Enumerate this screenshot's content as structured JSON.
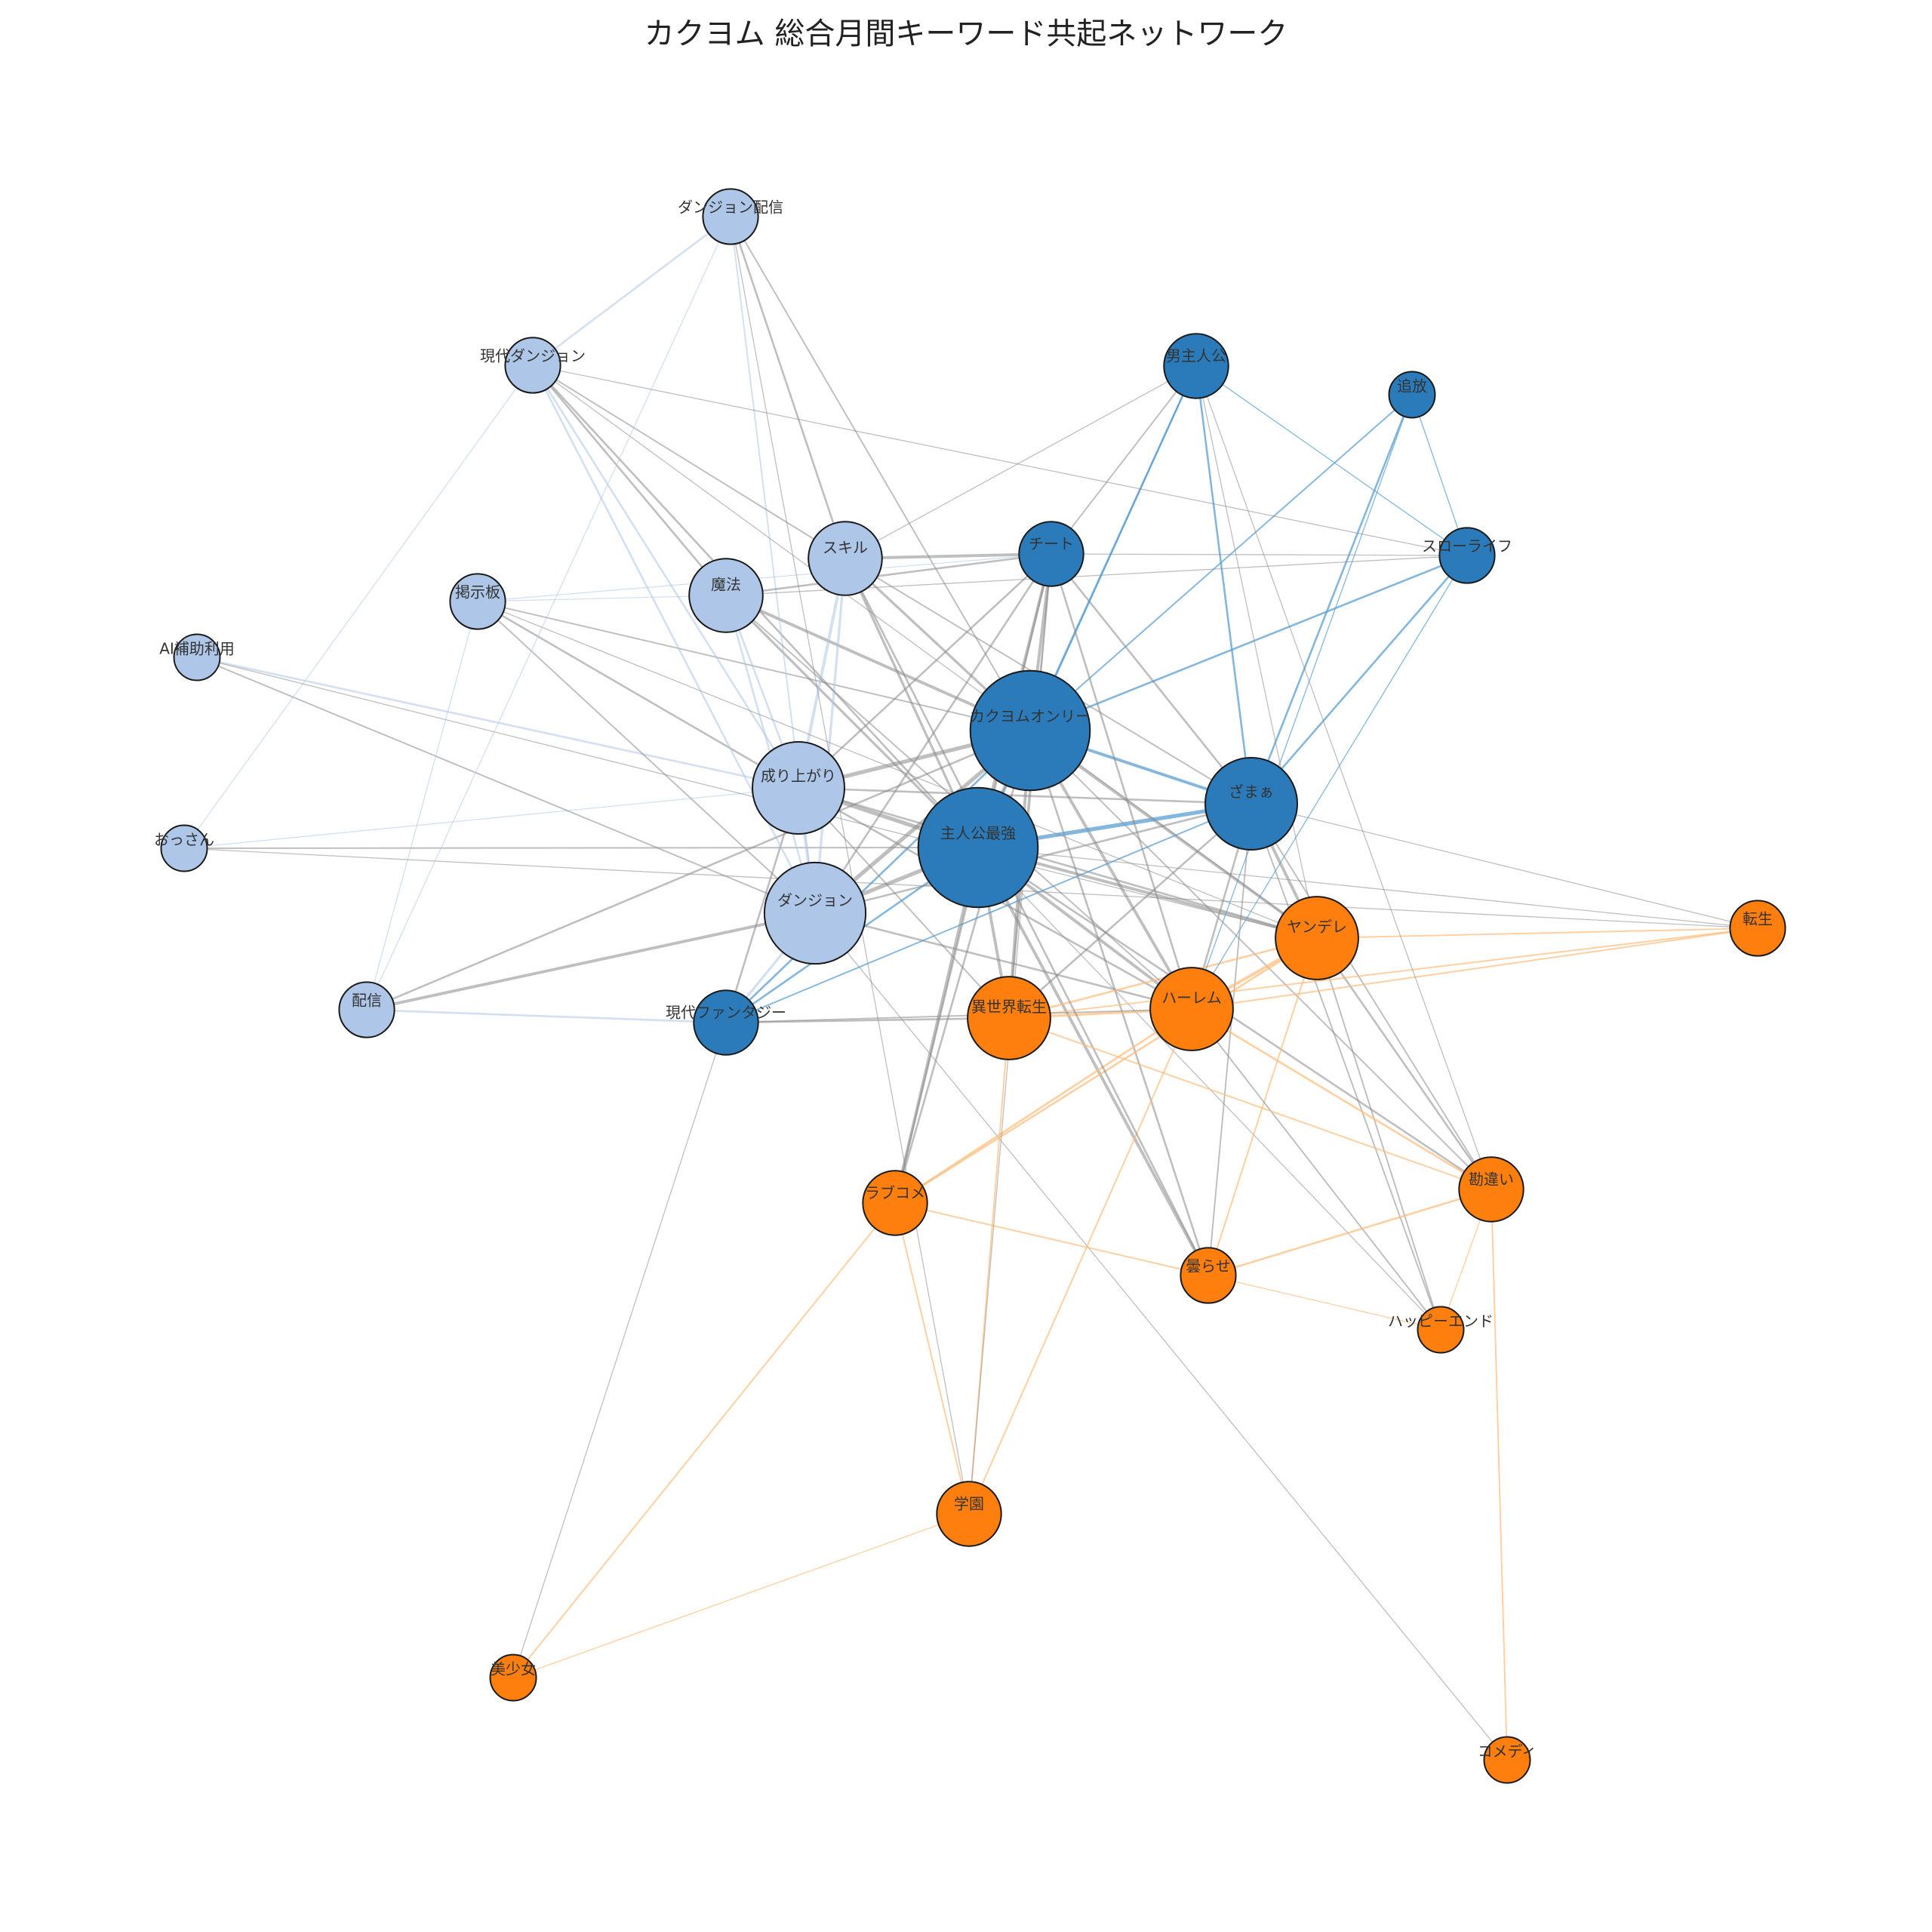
{
  "title": "カクヨム 総合月間キーワード共起ネットワーク",
  "colors": {
    "light_blue": "#aec7e8",
    "dark_blue": "#2b7bba",
    "orange": "#ff7f0e",
    "node_border": "#1a1a1a",
    "edge_gray": "#8a8a8a",
    "edge_light_blue": "#aec7e8",
    "edge_blue": "#5b9fd1",
    "edge_orange": "#ffbb78"
  },
  "nodes": [
    {
      "id": "ダンジョン配信",
      "group": "light_blue",
      "size": 3
    },
    {
      "id": "現代ダンジョン",
      "group": "light_blue",
      "size": 3
    },
    {
      "id": "スキル",
      "group": "light_blue",
      "size": 4
    },
    {
      "id": "魔法",
      "group": "light_blue",
      "size": 4
    },
    {
      "id": "掲示板",
      "group": "light_blue",
      "size": 3
    },
    {
      "id": "AI補助利用",
      "group": "light_blue",
      "size": 2.5
    },
    {
      "id": "成り上がり",
      "group": "light_blue",
      "size": 5
    },
    {
      "id": "おっさん",
      "group": "light_blue",
      "size": 2.5
    },
    {
      "id": "ダンジョン",
      "group": "light_blue",
      "size": 5.5
    },
    {
      "id": "配信",
      "group": "light_blue",
      "size": 3
    },
    {
      "id": "男主人公",
      "group": "dark_blue",
      "size": 3.5
    },
    {
      "id": "追放",
      "group": "dark_blue",
      "size": 2.5
    },
    {
      "id": "チート",
      "group": "dark_blue",
      "size": 3.5
    },
    {
      "id": "スローライフ",
      "group": "dark_blue",
      "size": 3
    },
    {
      "id": "カクヨムオンリー",
      "group": "dark_blue",
      "size": 6.5
    },
    {
      "id": "ざまぁ",
      "group": "dark_blue",
      "size": 5
    },
    {
      "id": "主人公最強",
      "group": "dark_blue",
      "size": 6.5
    },
    {
      "id": "現代ファンタジー",
      "group": "dark_blue",
      "size": 3.5
    },
    {
      "id": "ヤンデレ",
      "group": "orange",
      "size": 4.5
    },
    {
      "id": "転生",
      "group": "orange",
      "size": 3
    },
    {
      "id": "異世界転生",
      "group": "orange",
      "size": 4.5
    },
    {
      "id": "ハーレム",
      "group": "orange",
      "size": 4.5
    },
    {
      "id": "ラブコメ",
      "group": "orange",
      "size": 3.5
    },
    {
      "id": "勘違い",
      "group": "orange",
      "size": 3.5
    },
    {
      "id": "曇らせ",
      "group": "orange",
      "size": 3
    },
    {
      "id": "ハッピーエンド",
      "group": "orange",
      "size": 2.5
    },
    {
      "id": "学園",
      "group": "orange",
      "size": 3.5
    },
    {
      "id": "美少女",
      "group": "orange",
      "size": 2.5
    },
    {
      "id": "コメディ",
      "group": "orange",
      "size": 2.5
    }
  ],
  "edges": [
    [
      "カクヨムオンリー",
      "主人公最強",
      4,
      "gray"
    ],
    [
      "カクヨムオンリー",
      "成り上がり",
      4,
      "gray"
    ],
    [
      "カクヨムオンリー",
      "ダンジョン",
      4,
      "gray"
    ],
    [
      "カクヨムオンリー",
      "ざまぁ",
      3,
      "blue"
    ],
    [
      "カクヨムオンリー",
      "チート",
      3,
      "gray"
    ],
    [
      "カクヨムオンリー",
      "男主人公",
      2,
      "blue"
    ],
    [
      "カクヨムオンリー",
      "スローライフ",
      2,
      "blue"
    ],
    [
      "カクヨムオンリー",
      "追放",
      1.5,
      "blue"
    ],
    [
      "カクヨムオンリー",
      "魔法",
      3,
      "gray"
    ],
    [
      "カクヨムオンリー",
      "スキル",
      2.5,
      "gray"
    ],
    [
      "カクヨムオンリー",
      "ヤンデレ",
      3,
      "gray"
    ],
    [
      "カクヨムオンリー",
      "ハーレム",
      3,
      "gray"
    ],
    [
      "カクヨムオンリー",
      "異世界転生",
      3,
      "gray"
    ],
    [
      "カクヨムオンリー",
      "ラブコメ",
      2,
      "gray"
    ],
    [
      "カクヨムオンリー",
      "曇らせ",
      2,
      "gray"
    ],
    [
      "カクヨムオンリー",
      "勘違い",
      1.5,
      "gray"
    ],
    [
      "カクヨムオンリー",
      "現代ファンタジー",
      2,
      "blue"
    ],
    [
      "カクヨムオンリー",
      "配信",
      2,
      "gray"
    ],
    [
      "カクヨムオンリー",
      "ダンジョン配信",
      1.5,
      "gray"
    ],
    [
      "カクヨムオンリー",
      "掲示板",
      1.5,
      "gray"
    ],
    [
      "主人公最強",
      "成り上がり",
      4,
      "gray"
    ],
    [
      "主人公最強",
      "ダンジョン",
      4,
      "gray"
    ],
    [
      "主人公最強",
      "ざまぁ",
      4,
      "blue"
    ],
    [
      "主人公最強",
      "チート",
      3,
      "gray"
    ],
    [
      "主人公最強",
      "魔法",
      2.5,
      "gray"
    ],
    [
      "主人公最強",
      "スキル",
      2.5,
      "gray"
    ],
    [
      "主人公最強",
      "ヤンデレ",
      3,
      "gray"
    ],
    [
      "主人公最強",
      "ハーレム",
      3,
      "gray"
    ],
    [
      "主人公最強",
      "異世界転生",
      3,
      "gray"
    ],
    [
      "主人公最強",
      "ラブコメ",
      3,
      "gray"
    ],
    [
      "主人公最強",
      "曇らせ",
      3,
      "gray"
    ],
    [
      "主人公最強",
      "勘違い",
      2,
      "gray"
    ],
    [
      "主人公最強",
      "おっさん",
      1.5,
      "gray"
    ],
    [
      "主人公最強",
      "現代ダンジョン",
      2,
      "gray"
    ],
    [
      "主人公最強",
      "男主人公",
      1.5,
      "blue"
    ],
    [
      "主人公最強",
      "現代ファンタジー",
      2,
      "blue"
    ],
    [
      "主人公最強",
      "転生",
      1,
      "gray"
    ],
    [
      "主人公最強",
      "ハッピーエンド",
      1,
      "gray"
    ],
    [
      "成り上がり",
      "ダンジョン",
      3,
      "light"
    ],
    [
      "成り上がり",
      "スキル",
      3,
      "light"
    ],
    [
      "成り上がり",
      "魔法",
      2,
      "light"
    ],
    [
      "成り上がり",
      "チート",
      2,
      "gray"
    ],
    [
      "成り上がり",
      "ざまぁ",
      2,
      "gray"
    ],
    [
      "成り上がり",
      "掲示板",
      2,
      "gray"
    ],
    [
      "成り上がり",
      "AI補助利用",
      2,
      "light"
    ],
    [
      "成り上がり",
      "おっさん",
      1,
      "light"
    ],
    [
      "成り上がり",
      "現代ダンジョン",
      2,
      "light"
    ],
    [
      "成り上がり",
      "ハーレム",
      2,
      "gray"
    ],
    [
      "成り上がり",
      "ヤンデレ",
      2,
      "gray"
    ],
    [
      "成り上がり",
      "異世界転生",
      1.5,
      "gray"
    ],
    [
      "成り上がり",
      "現代ファンタジー",
      2,
      "gray"
    ],
    [
      "ダンジョン",
      "配信",
      3,
      "gray"
    ],
    [
      "ダンジョン",
      "スキル",
      2.5,
      "light"
    ],
    [
      "ダンジョン",
      "魔法",
      2,
      "light"
    ],
    [
      "ダンジョン",
      "現代ダンジョン",
      2,
      "light"
    ],
    [
      "ダンジョン",
      "ダンジョン配信",
      1.5,
      "light"
    ],
    [
      "ダンジョン",
      "掲示板",
      1.5,
      "gray"
    ],
    [
      "ダンジョン",
      "AI補助利用",
      1.5,
      "gray"
    ],
    [
      "ダンジョン",
      "現代ファンタジー",
      2.5,
      "light"
    ],
    [
      "ダンジョン",
      "ざまぁ",
      2,
      "gray"
    ],
    [
      "ダンジョン",
      "チート",
      2,
      "gray"
    ],
    [
      "ダンジョン",
      "ハーレム",
      2,
      "gray"
    ],
    [
      "ダンジョン",
      "コメディ",
      1,
      "gray"
    ],
    [
      "ざまぁ",
      "追放",
      2,
      "blue"
    ],
    [
      "ざまぁ",
      "スローライフ",
      2,
      "blue"
    ],
    [
      "ざまぁ",
      "男主人公",
      2,
      "blue"
    ],
    [
      "ざまぁ",
      "チート",
      2,
      "gray"
    ],
    [
      "ざまぁ",
      "ヤンデレ",
      3,
      "gray"
    ],
    [
      "ざまぁ",
      "ハーレム",
      2,
      "gray"
    ],
    [
      "ざまぁ",
      "異世界転生",
      2,
      "gray"
    ],
    [
      "ざまぁ",
      "曇らせ",
      1.5,
      "gray"
    ],
    [
      "ざまぁ",
      "勘違い",
      1.5,
      "gray"
    ],
    [
      "ざまぁ",
      "転生",
      1,
      "gray"
    ],
    [
      "ざまぁ",
      "ハッピーエンド",
      1.5,
      "gray"
    ],
    [
      "ざまぁ",
      "現代ファンタジー",
      1.5,
      "blue"
    ],
    [
      "ざまぁ",
      "スキル",
      1.5,
      "gray"
    ],
    [
      "ヤンデレ",
      "ハーレム",
      3,
      "orange"
    ],
    [
      "ヤンデレ",
      "異世界転生",
      2,
      "orange"
    ],
    [
      "ヤンデレ",
      "ラブコメ",
      2,
      "orange"
    ],
    [
      "ヤンデレ",
      "勘違い",
      2,
      "gray"
    ],
    [
      "ヤンデレ",
      "曇らせ",
      1.5,
      "orange"
    ],
    [
      "ヤンデレ",
      "ハッピーエンド",
      1.5,
      "gray"
    ],
    [
      "ヤンデレ",
      "転生",
      1.5,
      "orange"
    ],
    [
      "ヤンデレ",
      "男主人公",
      1,
      "gray"
    ],
    [
      "ハーレム",
      "異世界転生",
      2.5,
      "orange"
    ],
    [
      "ハーレム",
      "ラブコメ",
      2,
      "orange"
    ],
    [
      "ハーレム",
      "勘違い",
      2,
      "orange"
    ],
    [
      "ハーレム",
      "学園",
      1.5,
      "orange"
    ],
    [
      "ハーレム",
      "ハッピーエンド",
      1.5,
      "gray"
    ],
    [
      "ハーレム",
      "転生",
      1.5,
      "orange"
    ],
    [
      "ハーレム",
      "チート",
      2,
      "gray"
    ],
    [
      "異世界転生",
      "チート",
      2,
      "gray"
    ],
    [
      "異世界転生",
      "転生",
      1.5,
      "orange"
    ],
    [
      "異世界転生",
      "学園",
      1.5,
      "orange"
    ],
    [
      "異世界転生",
      "現代ファンタジー",
      2,
      "gray"
    ],
    [
      "ラブコメ",
      "曇らせ",
      1.5,
      "orange"
    ],
    [
      "ラブコメ",
      "学園",
      1.5,
      "orange"
    ],
    [
      "ラブコメ",
      "美少女",
      1.5,
      "orange"
    ],
    [
      "ラブコメ",
      "チート",
      2,
      "gray"
    ],
    [
      "曇らせ",
      "勘違い",
      2,
      "orange"
    ],
    [
      "曇らせ",
      "ハッピーエンド",
      1,
      "orange"
    ],
    [
      "曇らせ",
      "スキル",
      2,
      "gray"
    ],
    [
      "勘違い",
      "ハッピーエンド",
      1,
      "orange"
    ],
    [
      "勘違い",
      "コメディ",
      1.5,
      "orange"
    ],
    [
      "勘違い",
      "異世界転生",
      1.5,
      "orange"
    ],
    [
      "学園",
      "美少女",
      1,
      "orange"
    ],
    [
      "学園",
      "ダンジョン配信",
      1,
      "gray"
    ],
    [
      "美少女",
      "現代ファンタジー",
      1,
      "gray"
    ],
    [
      "チート",
      "スキル",
      3,
      "gray"
    ],
    [
      "チート",
      "男主人公",
      1.5,
      "gray"
    ],
    [
      "チート",
      "魔法",
      2,
      "gray"
    ],
    [
      "チート",
      "掲示板",
      1,
      "light"
    ],
    [
      "スキル",
      "ダンジョン配信",
      2,
      "gray"
    ],
    [
      "スキル",
      "男主人公",
      1,
      "gray"
    ],
    [
      "スキル",
      "現代ダンジョン",
      1.5,
      "gray"
    ],
    [
      "魔法",
      "現代ダンジョン",
      2,
      "gray"
    ],
    [
      "魔法",
      "掲示板",
      1,
      "light"
    ],
    [
      "魔法",
      "スローライフ",
      1,
      "gray"
    ],
    [
      "魔法",
      "ハーレム",
      1.5,
      "gray"
    ],
    [
      "現代ダンジョン",
      "ダンジョン配信",
      2,
      "light"
    ],
    [
      "現代ダンジョン",
      "おっさん",
      1,
      "light"
    ],
    [
      "現代ダンジョン",
      "スローライフ",
      1,
      "gray"
    ],
    [
      "現代ダンジョン",
      "ヤンデレ",
      1,
      "gray"
    ],
    [
      "掲示板",
      "配信",
      1,
      "light"
    ],
    [
      "掲示板",
      "ヤンデレ",
      1,
      "gray"
    ],
    [
      "AI補助利用",
      "ヤンデレ",
      1,
      "gray"
    ],
    [
      "おっさん",
      "転生",
      1,
      "gray"
    ],
    [
      "配信",
      "ダンジョン配信",
      1,
      "light"
    ],
    [
      "配信",
      "現代ファンタジー",
      2,
      "light"
    ],
    [
      "男主人公",
      "スローライフ",
      1,
      "blue"
    ],
    [
      "男主人公",
      "勘違い",
      1,
      "gray"
    ],
    [
      "追放",
      "スローライフ",
      1,
      "blue"
    ],
    [
      "追放",
      "ハーレム",
      1,
      "blue"
    ],
    [
      "スローライフ",
      "チート",
      1,
      "gray"
    ],
    [
      "スローライフ",
      "ハーレム",
      1,
      "blue"
    ],
    [
      "現代ファンタジー",
      "ハーレム",
      1.5,
      "gray"
    ],
    [
      "学園",
      "チート",
      1,
      "gray"
    ]
  ]
}
